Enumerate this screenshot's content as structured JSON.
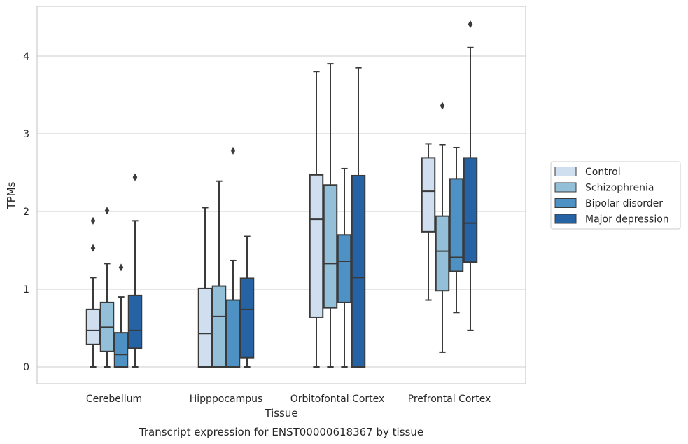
{
  "chart_data": {
    "type": "box",
    "title": "",
    "caption": "Transcript expression for ENST00000618367 by tissue",
    "xlabel": "Tissue",
    "ylabel": "TPMs",
    "ylim": [
      -0.22,
      4.65
    ],
    "yticks": [
      0,
      1,
      2,
      3,
      4
    ],
    "grid": "horizontal",
    "legend_position": "right",
    "categories": [
      "Cerebellum",
      "Hipppocampus",
      "Orbitofontal Cortex",
      "Prefrontal Cortex"
    ],
    "series": [
      {
        "name": "Control",
        "color": "#cfdff0",
        "boxes": [
          {
            "whislo": 0.0,
            "q1": 0.29,
            "med": 0.47,
            "q3": 0.74,
            "whishi": 1.15,
            "fliers": [
              1.53,
              1.88
            ]
          },
          {
            "whislo": 0.0,
            "q1": 0.0,
            "med": 0.43,
            "q3": 1.01,
            "whishi": 2.05,
            "fliers": []
          },
          {
            "whislo": 0.0,
            "q1": 0.64,
            "med": 1.9,
            "q3": 2.47,
            "whishi": 3.8,
            "fliers": []
          },
          {
            "whislo": 0.86,
            "q1": 1.74,
            "med": 2.26,
            "q3": 2.69,
            "whishi": 2.87,
            "fliers": []
          }
        ]
      },
      {
        "name": "Schizophrenia",
        "color": "#94bfd9",
        "boxes": [
          {
            "whislo": 0.0,
            "q1": 0.2,
            "med": 0.51,
            "q3": 0.83,
            "whishi": 1.33,
            "fliers": [
              2.01
            ]
          },
          {
            "whislo": 0.0,
            "q1": 0.0,
            "med": 0.65,
            "q3": 1.04,
            "whishi": 2.39,
            "fliers": []
          },
          {
            "whislo": 0.0,
            "q1": 0.76,
            "med": 1.33,
            "q3": 2.34,
            "whishi": 3.9,
            "fliers": []
          },
          {
            "whislo": 0.19,
            "q1": 0.98,
            "med": 1.49,
            "q3": 1.94,
            "whishi": 2.86,
            "fliers": [
              3.36
            ]
          }
        ]
      },
      {
        "name": "Bipolar disorder",
        "color": "#4e91c4",
        "boxes": [
          {
            "whislo": 0.0,
            "q1": 0.0,
            "med": 0.16,
            "q3": 0.44,
            "whishi": 0.9,
            "fliers": [
              1.28
            ]
          },
          {
            "whislo": 0.0,
            "q1": 0.0,
            "med": 0.0,
            "q3": 0.86,
            "whishi": 1.37,
            "fliers": [
              2.78
            ]
          },
          {
            "whislo": 0.0,
            "q1": 0.83,
            "med": 1.36,
            "q3": 1.7,
            "whishi": 2.55,
            "fliers": []
          },
          {
            "whislo": 0.7,
            "q1": 1.23,
            "med": 1.41,
            "q3": 2.42,
            "whishi": 2.82,
            "fliers": []
          }
        ]
      },
      {
        "name": "Major depression",
        "color": "#2563a4",
        "boxes": [
          {
            "whislo": 0.0,
            "q1": 0.24,
            "med": 0.47,
            "q3": 0.92,
            "whishi": 1.88,
            "fliers": [
              2.44
            ]
          },
          {
            "whislo": 0.0,
            "q1": 0.12,
            "med": 0.74,
            "q3": 1.14,
            "whishi": 1.68,
            "fliers": []
          },
          {
            "whislo": 0.0,
            "q1": 0.0,
            "med": 1.15,
            "q3": 2.46,
            "whishi": 3.85,
            "fliers": []
          },
          {
            "whislo": 0.47,
            "q1": 1.35,
            "med": 1.85,
            "q3": 2.69,
            "whishi": 4.11,
            "fliers": [
              4.41
            ]
          }
        ]
      }
    ]
  }
}
